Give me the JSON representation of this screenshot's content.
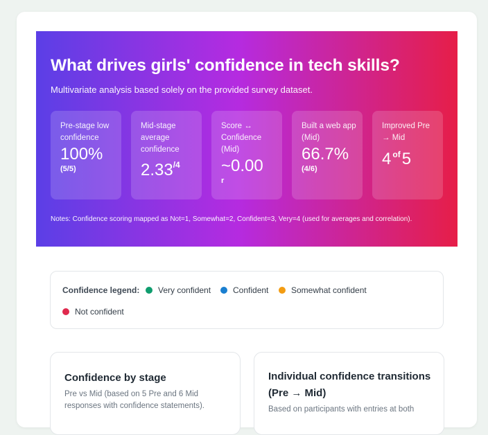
{
  "hero": {
    "title": "What drives girls' confidence in tech skills?",
    "subtitle": "Multivariate analysis based solely on the provided survey dataset.",
    "kpis": [
      {
        "label": "Pre-stage low confidence",
        "value": "100%",
        "sub": "(5/5)"
      },
      {
        "label": "Mid-stage average confidence",
        "value": "2.33",
        "sup": "/4"
      },
      {
        "label": "Score ↔ Confidence (Mid)",
        "value": "~0.00",
        "sub": "r"
      },
      {
        "label": "Built a web app (Mid)",
        "value": "66.7%",
        "sub": "(4/6)"
      },
      {
        "label": "Improved Pre → Mid",
        "value_a": "4",
        "of": "of",
        "value_b": "5"
      }
    ],
    "notes": "Notes: Confidence scoring mapped as Not=1, Somewhat=2, Confident=3, Very=4 (used for averages and correlation)."
  },
  "legend": {
    "title": "Confidence legend:",
    "items": [
      {
        "label": "Very confident",
        "color": "#0f9d6e"
      },
      {
        "label": "Confident",
        "color": "#1a7fd0"
      },
      {
        "label": "Somewhat confident",
        "color": "#f39c12"
      },
      {
        "label": "Not confident",
        "color": "#e0294d"
      }
    ]
  },
  "panels": [
    {
      "title": "Confidence by stage",
      "desc": "Pre vs Mid (based on 5 Pre and 6 Mid responses with confidence statements)."
    },
    {
      "title": "Individual confidence transitions (Pre → Mid)",
      "desc": "Based on participants with entries at both"
    }
  ]
}
